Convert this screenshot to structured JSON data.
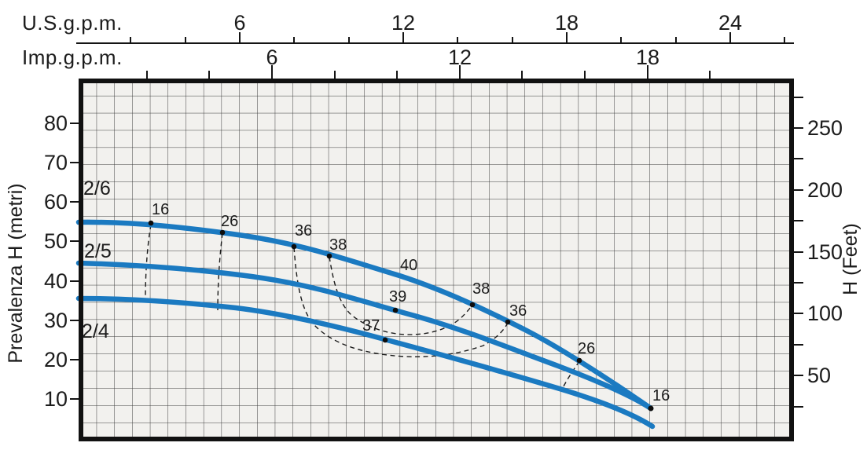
{
  "axes": {
    "us_gpm": {
      "title": "U.S.g.p.m.",
      "tick_labels": [
        "6",
        "12",
        "18",
        "24"
      ]
    },
    "imp_gpm": {
      "title": "Imp.g.p.m.",
      "tick_labels": [
        "6",
        "12",
        "18"
      ]
    },
    "left": {
      "title": "Prevalenza H (metri)",
      "tick_labels": [
        "10",
        "20",
        "30",
        "40",
        "50",
        "60",
        "70",
        "80"
      ]
    },
    "right": {
      "title": "H (Feet)",
      "tick_labels": [
        "50",
        "100",
        "150",
        "200",
        "250"
      ]
    }
  },
  "curves": [
    {
      "name": "2/6"
    },
    {
      "name": "2/5"
    },
    {
      "name": "2/4"
    }
  ],
  "efficiency_labels": [
    "16",
    "26",
    "36",
    "38",
    "40",
    "39",
    "38",
    "36",
    "37",
    "26",
    "16"
  ],
  "colors": {
    "curve_blue": "#1b7ac1",
    "plot_background": "#f2f1ee",
    "grid_line": "#3d3d3d",
    "frame": "#111111",
    "contour_line": "#1c1c1c",
    "text": "#1c1c1c"
  },
  "chart_data": {
    "type": "line",
    "title": "Pump performance curves: head vs flow with iso-efficiency contours",
    "x_axes": [
      {
        "label": "U.S.g.p.m.",
        "tick_labels": [
          6,
          12,
          18,
          24
        ],
        "range": [
          0,
          26
        ]
      },
      {
        "label": "Imp.g.p.m.",
        "tick_labels": [
          6,
          12,
          18
        ],
        "range": [
          0,
          21.7
        ]
      }
    ],
    "y_axes": [
      {
        "label": "Prevalenza H (metri)",
        "tick_labels": [
          10,
          20,
          30,
          40,
          50,
          60,
          70,
          80
        ],
        "range": [
          0,
          92
        ]
      },
      {
        "label": "H (Feet)",
        "tick_labels": [
          50,
          100,
          150,
          200,
          250
        ],
        "range": [
          0,
          302
        ]
      }
    ],
    "grid": true,
    "series": [
      {
        "name": "2/6",
        "x_usgpm": [
          0,
          2.7,
          5.4,
          8.0,
          9.3,
          11.8,
          14.5,
          15.8,
          18.5,
          21.1
        ],
        "head_m": [
          55,
          54.7,
          52.5,
          48.9,
          46.5,
          41.5,
          34.1,
          29.7,
          20.0,
          7.6
        ]
      },
      {
        "name": "2/5",
        "x_usgpm": [
          0,
          5.4,
          8.0,
          11.7,
          15.1,
          18.9,
          21.1
        ],
        "head_m": [
          44.5,
          42.7,
          39.1,
          32.5,
          25.0,
          15.6,
          7.6
        ]
      },
      {
        "name": "2/4",
        "x_usgpm": [
          0,
          5.4,
          8.0,
          11.3,
          15.1,
          18.9,
          21.2
        ],
        "head_m": [
          35.5,
          33.5,
          30.3,
          25.0,
          18.0,
          10.2,
          3.0
        ]
      }
    ],
    "efficiency_points_on_2_6": [
      {
        "eff_pct": 16,
        "x_usgpm": 2.7,
        "head_m": 54.7
      },
      {
        "eff_pct": 26,
        "x_usgpm": 5.4,
        "head_m": 52.5
      },
      {
        "eff_pct": 36,
        "x_usgpm": 8.0,
        "head_m": 48.9
      },
      {
        "eff_pct": 38,
        "x_usgpm": 9.3,
        "head_m": 46.5
      },
      {
        "eff_pct": 40,
        "x_usgpm": 11.5,
        "head_m": 42.1
      },
      {
        "eff_pct": 38,
        "x_usgpm": 14.5,
        "head_m": 34.1
      },
      {
        "eff_pct": 36,
        "x_usgpm": 15.8,
        "head_m": 29.7
      },
      {
        "eff_pct": 26,
        "x_usgpm": 18.5,
        "head_m": 20.0
      },
      {
        "eff_pct": 16,
        "x_usgpm": 21.1,
        "head_m": 7.6
      }
    ],
    "best_efficiency_labels": [
      {
        "curve": "2/5",
        "eff_pct": 39,
        "x_usgpm": 11.7,
        "head_m": 32.5
      },
      {
        "curve": "2/4",
        "eff_pct": 37,
        "x_usgpm": 11.3,
        "head_m": 25.0
      }
    ],
    "legend_position": "none"
  }
}
